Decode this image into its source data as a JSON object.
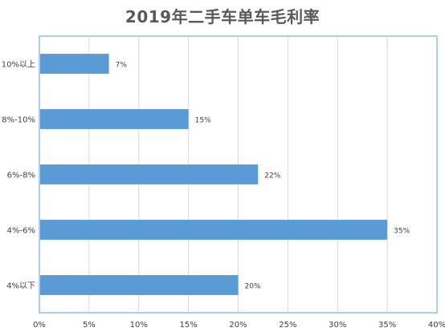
{
  "chart_data": {
    "type": "bar",
    "orientation": "horizontal",
    "title": "2019年二手车单车毛利率",
    "categories": [
      "10%以上",
      "8%-10%",
      "6%-8%",
      "4%-6%",
      "4%以下"
    ],
    "values": [
      7,
      15,
      22,
      35,
      20
    ],
    "value_labels": [
      "7%",
      "15%",
      "22%",
      "35%",
      "20%"
    ],
    "xlim": [
      0,
      40
    ],
    "xticks": [
      "0%",
      "5%",
      "10%",
      "15%",
      "20%",
      "25%",
      "30%",
      "35%",
      "40%"
    ],
    "grid": true,
    "legend": "none",
    "bar_color": "#5b9bd5",
    "grid_color": "#d9d9d9",
    "frame_color": "#5b9bd5"
  }
}
